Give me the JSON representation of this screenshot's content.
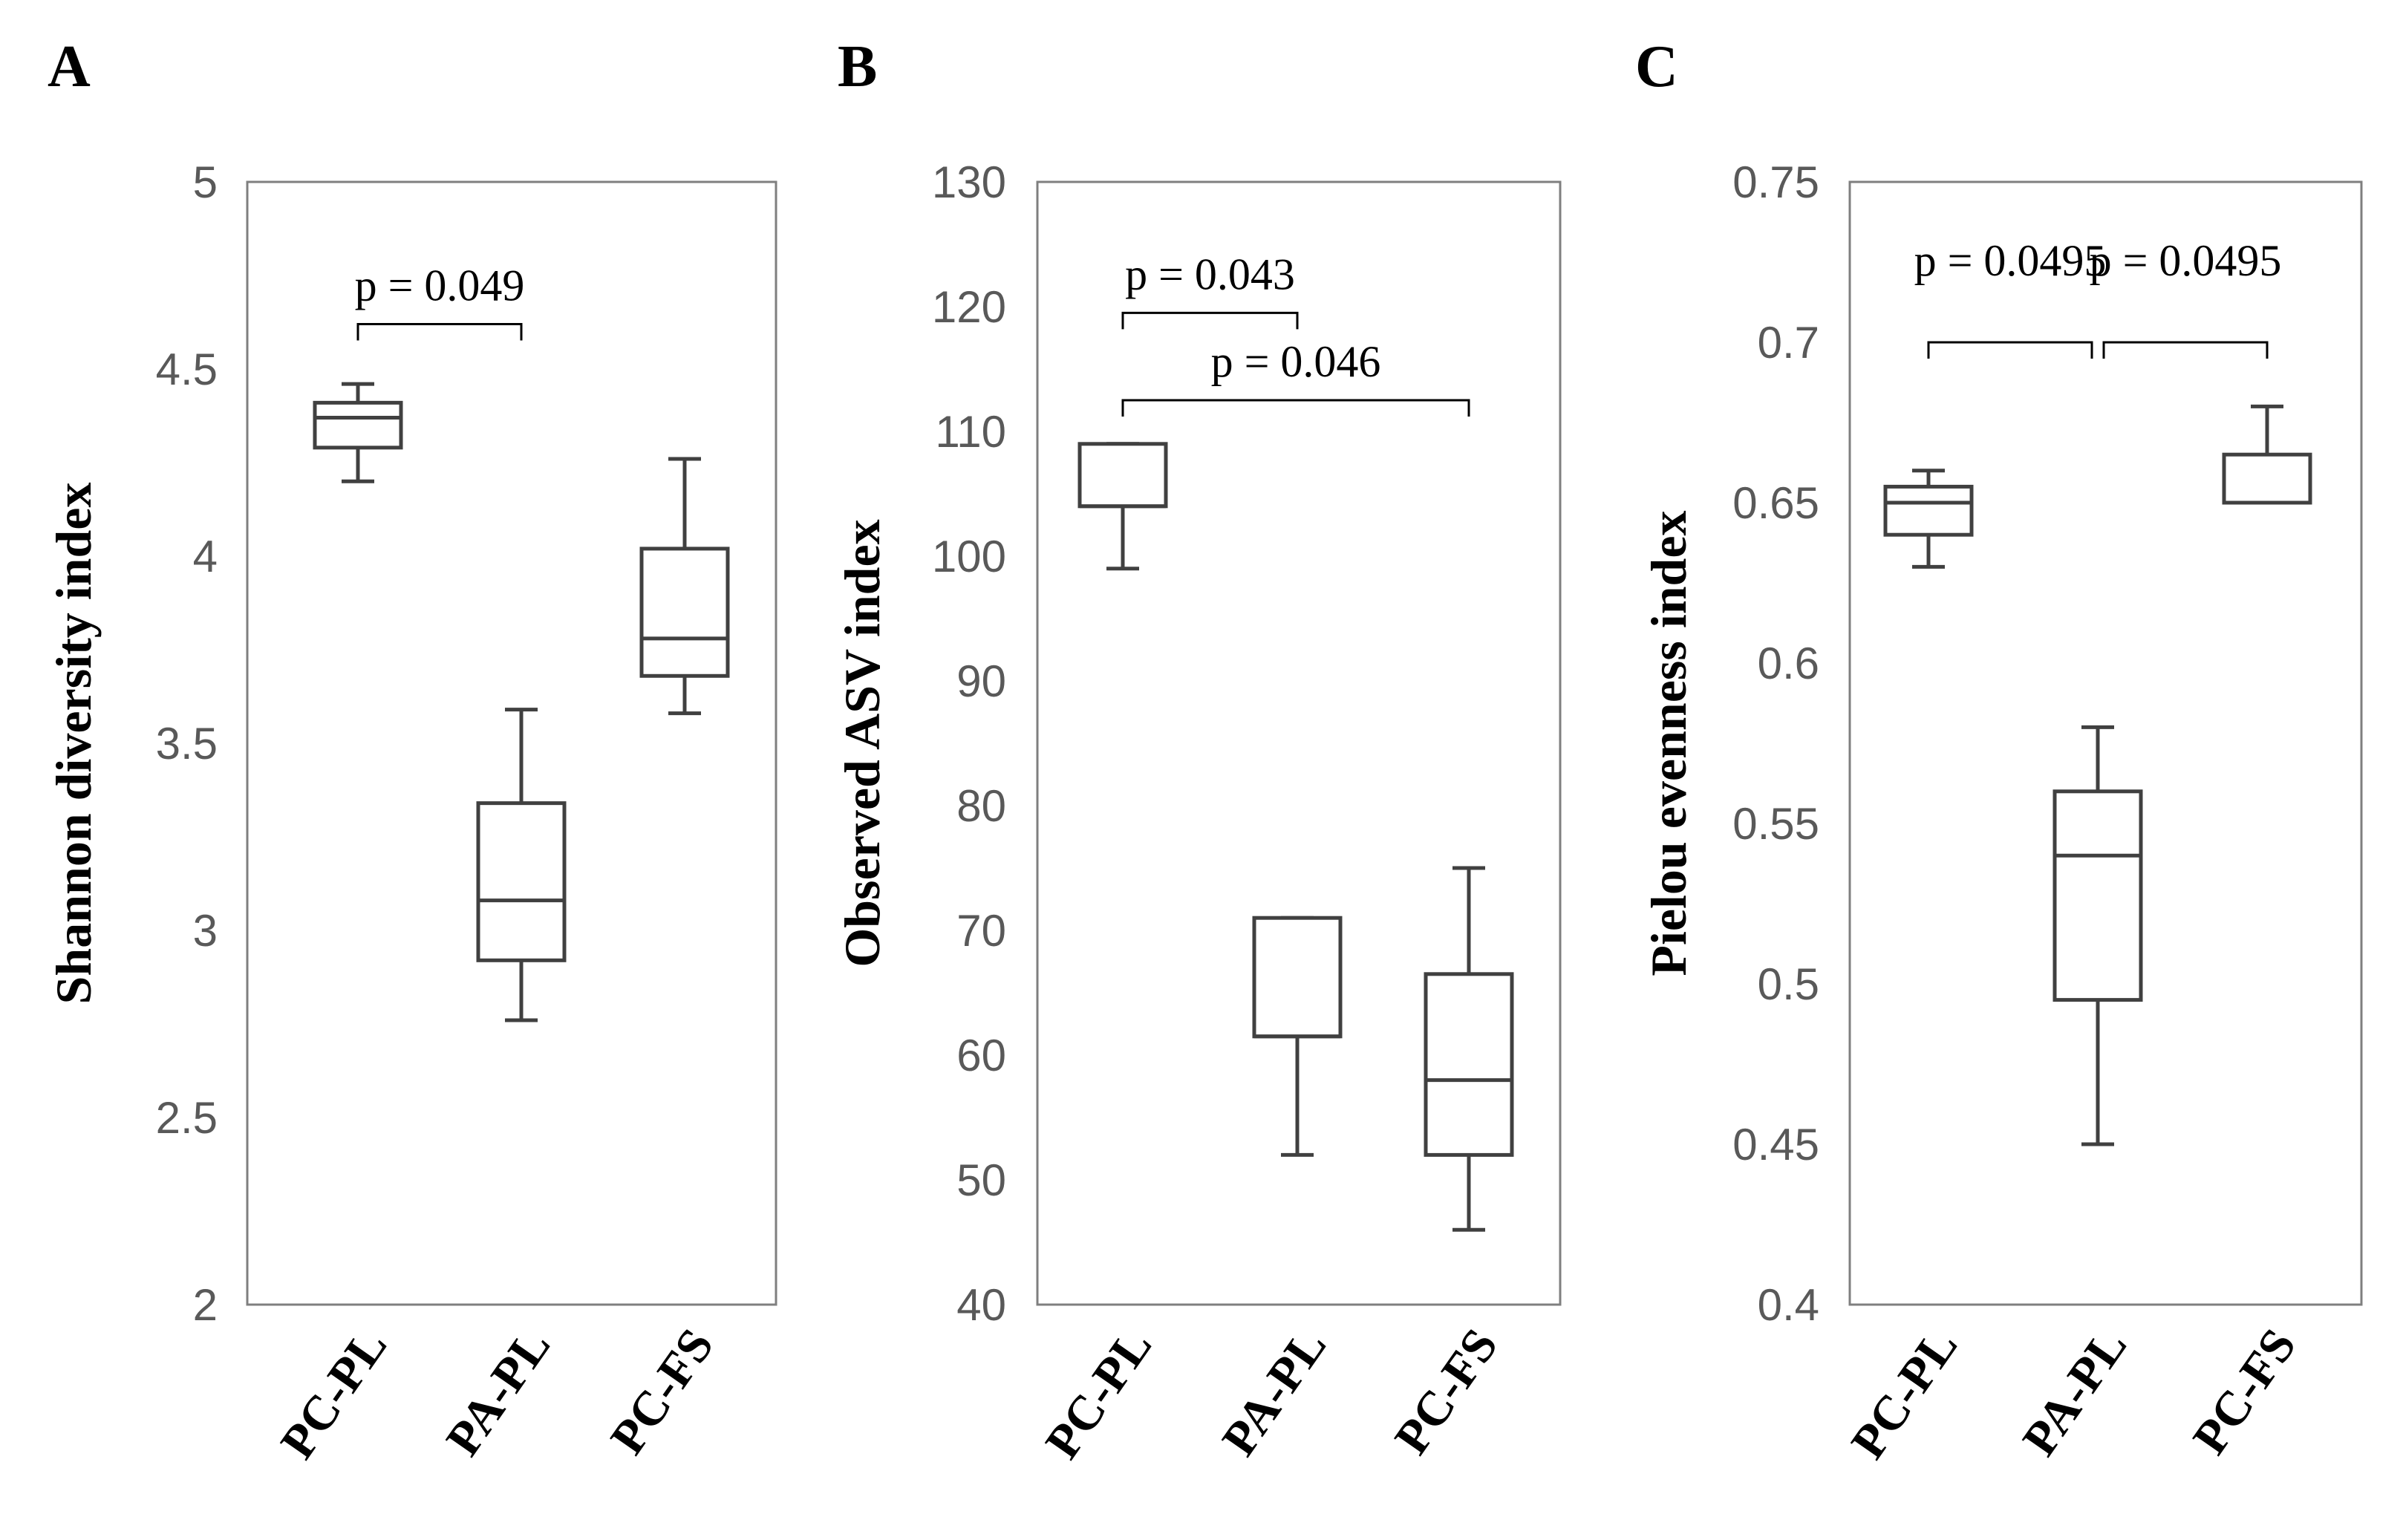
{
  "chart_data": [
    {
      "type": "box",
      "panel": "A",
      "ylabel": "Shannon diversity index",
      "ylim": [
        2,
        5
      ],
      "yticks": [
        "2",
        "2.5",
        "3",
        "3.5",
        "4",
        "4.5",
        "5"
      ],
      "yticks_values": [
        2,
        2.5,
        3,
        3.5,
        4,
        4.5,
        5
      ],
      "categories": [
        "PC-PL",
        "PA-PL",
        "PC-FS"
      ],
      "boxes": [
        {
          "min": 4.2,
          "q1": 4.29,
          "median": 4.37,
          "q3": 4.41,
          "max": 4.46
        },
        {
          "min": 2.76,
          "q1": 2.92,
          "median": 3.08,
          "q3": 3.34,
          "max": 3.59
        },
        {
          "min": 3.58,
          "q1": 3.68,
          "median": 3.78,
          "q3": 4.02,
          "max": 4.26
        }
      ],
      "comparisons": [
        {
          "from": 0,
          "to": 1,
          "label": "p = 0.049",
          "y": 4.62
        }
      ]
    },
    {
      "type": "box",
      "panel": "B",
      "ylabel": "Observed ASV index",
      "ylim": [
        40,
        130
      ],
      "yticks": [
        "40",
        "50",
        "60",
        "70",
        "80",
        "90",
        "100",
        "110",
        "120",
        "130"
      ],
      "yticks_values": [
        40,
        50,
        60,
        70,
        80,
        90,
        100,
        110,
        120,
        130
      ],
      "categories": [
        "PC-PL",
        "PA-PL",
        "PC-FS"
      ],
      "boxes": [
        {
          "min": 99,
          "q1": 104,
          "median": 104,
          "q3": 109,
          "max": 109
        },
        {
          "min": 52,
          "q1": 61.5,
          "median": 61.5,
          "q3": 71,
          "max": 71
        },
        {
          "min": 46,
          "q1": 52,
          "median": 58,
          "q3": 66.5,
          "max": 75
        }
      ],
      "comparisons": [
        {
          "from": 0,
          "to": 1,
          "label": "p = 0.043",
          "y": 119.5
        },
        {
          "from": 0,
          "to": 2,
          "label": "p = 0.046",
          "y": 112.5
        }
      ]
    },
    {
      "type": "box",
      "panel": "C",
      "ylabel": "Pielou evenness index",
      "ylim": [
        0.4,
        0.75
      ],
      "yticks": [
        "0.4",
        "0.45",
        "0.5",
        "0.55",
        "0.6",
        "0.65",
        "0.7",
        "0.75"
      ],
      "yticks_values": [
        0.4,
        0.45,
        0.5,
        0.55,
        0.6,
        0.65,
        0.7,
        0.75
      ],
      "categories": [
        "PC-PL",
        "PA-PL",
        "PC-FS"
      ],
      "boxes": [
        {
          "min": 0.63,
          "q1": 0.64,
          "median": 0.65,
          "q3": 0.655,
          "max": 0.66
        },
        {
          "min": 0.45,
          "q1": 0.495,
          "median": 0.54,
          "q3": 0.56,
          "max": 0.58
        },
        {
          "min": 0.65,
          "q1": 0.65,
          "median": 0.65,
          "q3": 0.665,
          "max": 0.68
        }
      ],
      "comparisons": [
        {
          "from": 0,
          "to": 1,
          "label": "p = 0.0495",
          "y": 0.7
        },
        {
          "from": 1,
          "to": 2,
          "label": "p = 0.0495",
          "y": 0.7
        }
      ]
    }
  ]
}
